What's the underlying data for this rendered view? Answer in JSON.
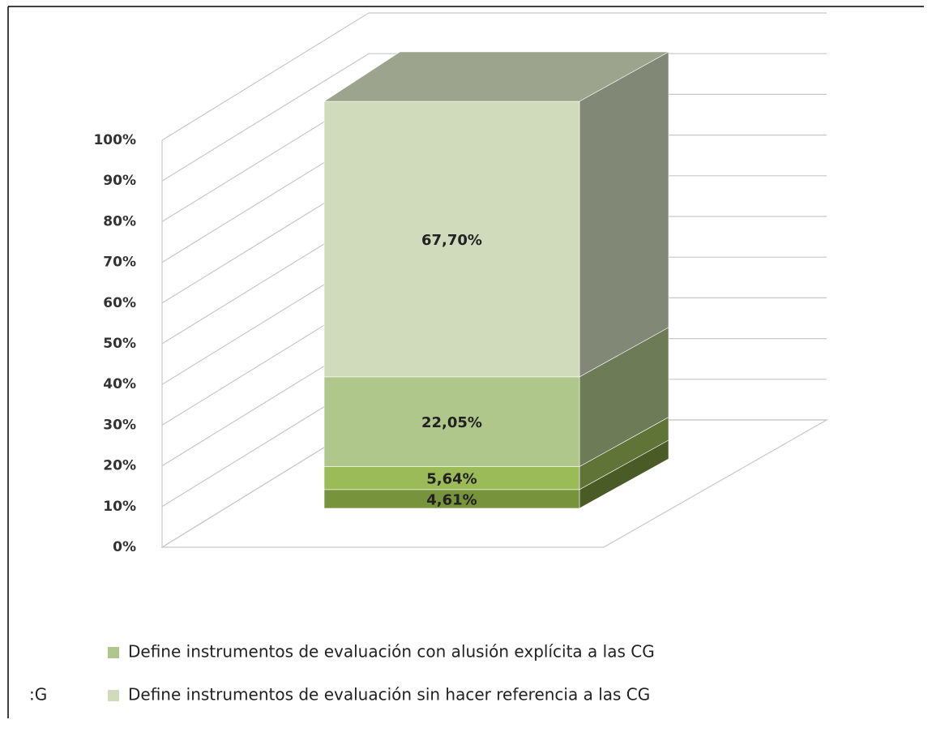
{
  "chart_data": {
    "type": "bar3d_stacked",
    "categories": [
      null
    ],
    "series": [
      {
        "name": null,
        "color": "#77933c",
        "values": [
          4.61
        ],
        "value_labels": [
          "4,61%"
        ]
      },
      {
        "name": null,
        "color": "#9bbb59",
        "values": [
          5.64
        ],
        "value_labels": [
          "5,64%"
        ]
      },
      {
        "name": "Define instrumentos de evaluación con alusión explícita a las CG",
        "color": "#afc78a",
        "values": [
          22.05
        ],
        "value_labels": [
          "22,05%"
        ]
      },
      {
        "name": "Define instrumentos de evaluación sin hacer referencia a las CG",
        "color": "#d0dbbc",
        "values": [
          67.7
        ],
        "value_labels": [
          "67,70%"
        ]
      }
    ],
    "legend_fragment": ":G",
    "ylim": [
      0,
      100
    ],
    "yticks": [
      {
        "value": 0,
        "label": "0%"
      },
      {
        "value": 10,
        "label": "10%"
      },
      {
        "value": 20,
        "label": "20%"
      },
      {
        "value": 30,
        "label": "30%"
      },
      {
        "value": 40,
        "label": "40%"
      },
      {
        "value": 50,
        "label": "50%"
      },
      {
        "value": 60,
        "label": "60%"
      },
      {
        "value": 70,
        "label": "70%"
      },
      {
        "value": 80,
        "label": "80%"
      },
      {
        "value": 90,
        "label": "90%"
      },
      {
        "value": 100,
        "label": "100%"
      }
    ],
    "grid": true
  }
}
